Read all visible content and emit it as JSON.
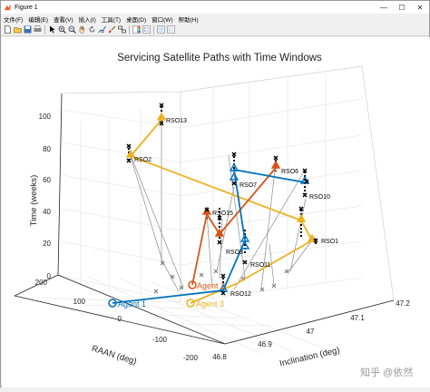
{
  "window": {
    "title": "Figure 1",
    "minimize": "—",
    "maximize": "☐",
    "close": "✕"
  },
  "menu": [
    "文件(F)",
    "编辑(E)",
    "查看(V)",
    "插入(I)",
    "工具(T)",
    "桌面(D)",
    "窗口(W)",
    "帮助(H)"
  ],
  "toolbar_icons": [
    "new-file-icon",
    "open-folder-icon",
    "save-icon",
    "print-icon",
    "pointer-icon",
    "zoom-in-icon",
    "zoom-out-icon",
    "pan-icon",
    "rotate-icon",
    "data-cursor-icon",
    "brush-icon",
    "link-icon",
    "colorbar-icon",
    "legend-icon",
    "hide-plot-tools-icon",
    "show-plot-tools-icon"
  ],
  "colors": {
    "agent1": "#0072bd",
    "agent2": "#d95319",
    "agent3": "#edb120",
    "gray_path": "#8a8a8a",
    "marker": "#000000"
  },
  "chart_data": {
    "type": "line3d",
    "title": "Servicing Satellite Paths with Time Windows",
    "xlabel": "Inclination (deg)",
    "ylabel": "RAAN (deg)",
    "zlabel": "Time (weeks)",
    "x_ticks": [
      "46.8",
      "46.9",
      "47",
      "47.1",
      "47.2"
    ],
    "y_ticks": [
      "200",
      "100",
      "0",
      "-100",
      "-200"
    ],
    "z_ticks": [
      "0",
      "20",
      "40",
      "60",
      "80",
      "100"
    ],
    "series": [
      {
        "name": "Agent 1",
        "color": "#0072bd",
        "stops": [
          "Agent 1",
          "RSO12",
          "RSO3",
          "RSO7",
          "RSO10"
        ]
      },
      {
        "name": "Agent 2",
        "color": "#d95319",
        "stops": [
          "Agent 2",
          "RSO15",
          "RSO3",
          "RSO6"
        ]
      },
      {
        "name": "Agent 3",
        "color": "#edb120",
        "stops": [
          "Agent 3",
          "RSO1",
          "RSO10",
          "RSO2",
          "RSO13"
        ]
      }
    ],
    "rso_labels": [
      "RSO13",
      "RSO2",
      "RSO6",
      "RSO7",
      "RSO10",
      "RSO15",
      "RSO3",
      "RSO1",
      "RSO11",
      "RSO12"
    ],
    "agent_labels": [
      "Agent 1",
      "Agent 2",
      "Agent 3"
    ]
  },
  "watermark": "知乎 @依然"
}
